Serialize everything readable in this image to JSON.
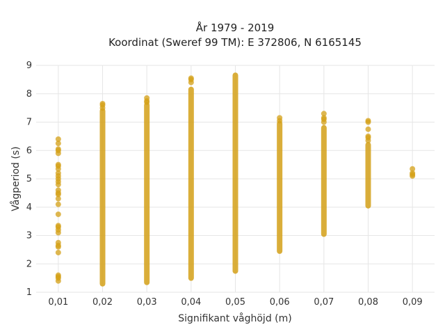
{
  "chart_data": {
    "type": "scatter",
    "title": "År 1979 - 2019",
    "subtitle": "Koordinat (Sweref 99 TM): E 372806, N 6165145",
    "xlabel": "Signifikant våghöjd (m)",
    "ylabel": "Vågperiod (s)",
    "xlim": [
      0.005,
      0.095
    ],
    "ylim": [
      1,
      9
    ],
    "x_ticks": [
      0.01,
      0.02,
      0.03,
      0.04,
      0.05,
      0.06,
      0.07,
      0.08,
      0.09
    ],
    "x_tick_labels": [
      "0,01",
      "0,02",
      "0,03",
      "0,04",
      "0,05",
      "0,06",
      "0,07",
      "0,08",
      "0,09"
    ],
    "y_ticks": [
      1,
      2,
      3,
      4,
      5,
      6,
      7,
      8,
      9
    ],
    "y_tick_labels": [
      "1",
      "2",
      "3",
      "4",
      "5",
      "6",
      "7",
      "8",
      "9"
    ],
    "grid": true,
    "color": "#d4a017",
    "series": [
      {
        "name": "",
        "columns": [
          {
            "x": 0.01,
            "y": [
              1.4,
              1.5,
              1.55,
              1.6,
              2.4,
              2.6,
              2.65,
              2.75,
              3.1,
              3.2,
              3.3,
              3.35,
              3.75,
              4.1,
              4.3,
              4.45,
              4.5,
              4.6,
              4.8,
              4.9,
              5.0,
              5.1,
              5.2,
              5.35,
              5.45,
              5.5,
              5.9,
              6.0,
              6.05,
              6.25,
              6.4
            ]
          },
          {
            "x": 0.02,
            "y_min": 1.3,
            "y_max": 7.4,
            "y_extra": [
              7.5,
              7.6,
              7.65
            ]
          },
          {
            "x": 0.03,
            "y_min": 1.35,
            "y_max": 7.6,
            "y_extra": [
              7.7,
              7.75,
              7.85
            ]
          },
          {
            "x": 0.04,
            "y_min": 1.5,
            "y_max": 8.15,
            "y_extra": [
              8.4,
              8.5,
              8.55
            ]
          },
          {
            "x": 0.05,
            "y_min": 1.75,
            "y_max": 8.65
          },
          {
            "x": 0.06,
            "y_min": 2.45,
            "y_max": 6.95,
            "y_extra": [
              7.05,
              7.15
            ]
          },
          {
            "x": 0.07,
            "y_min": 3.05,
            "y_max": 6.8,
            "y_extra": [
              7.0,
              7.1,
              7.15,
              7.3
            ]
          },
          {
            "x": 0.08,
            "y_min": 4.05,
            "y_max": 6.2,
            "y_extra": [
              6.35,
              6.45,
              6.5,
              6.75,
              7.0,
              7.05
            ]
          },
          {
            "x": 0.09,
            "y": [
              5.1,
              5.15,
              5.2,
              5.35
            ]
          }
        ]
      }
    ]
  }
}
